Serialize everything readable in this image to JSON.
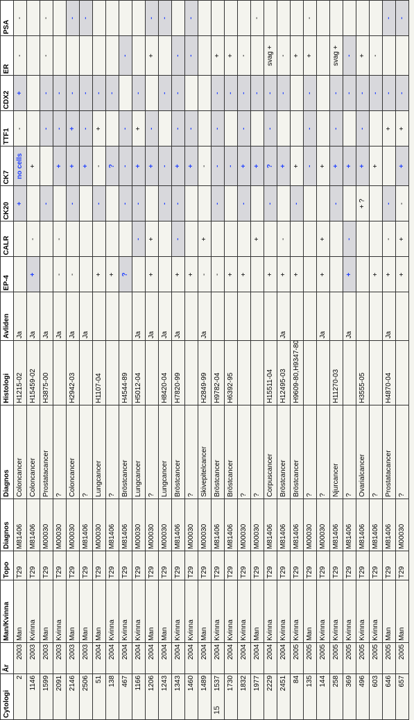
{
  "headers": [
    "Cytologi",
    "År",
    "Man/Kvinna",
    "Topo",
    "Diagnos",
    "Diagnos",
    "Histologi",
    "Avliden",
    "EP-4",
    "CALR",
    "CK20",
    "CK7",
    "TTF1",
    "CDX2",
    "ER",
    "PSA"
  ],
  "page_number": "15",
  "rows": [
    {
      "cyt": "2",
      "ar": "2003",
      "mk": "Man",
      "topo": "T29",
      "d1": "M81406",
      "d2": "Coloncancer",
      "hist": "H1215-02",
      "av": "Ja",
      "m": [
        "",
        "",
        "+",
        "no cells",
        "-",
        "+",
        "-",
        "-"
      ],
      "shade": [
        0,
        0,
        1,
        1,
        0,
        1,
        0,
        0
      ]
    },
    {
      "cyt": "1146",
      "ar": "2003",
      "mk": "Kvinna",
      "topo": "T29",
      "d1": "M81406",
      "d2": "Coloncancer",
      "hist": "H15459-02",
      "av": "Ja",
      "m": [
        "+",
        "-",
        "",
        "+",
        "",
        "",
        "",
        ""
      ],
      "shade": [
        1,
        0,
        0,
        0,
        0,
        0,
        0,
        0
      ]
    },
    {
      "cyt": "1599",
      "ar": "2003",
      "mk": "Man",
      "topo": "T29",
      "d1": "M00030",
      "d2": "Prostatacancer",
      "hist": "H3875-00",
      "av": "Ja",
      "m": [
        "",
        "",
        "-",
        "",
        "-",
        "-",
        "-",
        "-"
      ],
      "shade": [
        0,
        0,
        1,
        0,
        1,
        1,
        0,
        0
      ]
    },
    {
      "cyt": "2091",
      "ar": "2003",
      "mk": "Kvinna",
      "topo": "T29",
      "d1": "M00030",
      "d2": "?",
      "hist": "",
      "av": "Ja",
      "m": [
        "-",
        "-",
        "",
        "+",
        "-",
        "-",
        "",
        ""
      ],
      "shade": [
        0,
        0,
        0,
        1,
        1,
        1,
        0,
        0
      ]
    },
    {
      "cyt": "2146",
      "ar": "2003",
      "mk": "Man",
      "topo": "T29",
      "d1": "M00030",
      "d2": "Coloncancer",
      "hist": "H2942-03",
      "av": "Ja",
      "m": [
        "-",
        "",
        "-",
        "+",
        "+",
        "-",
        "",
        "-"
      ],
      "shade": [
        0,
        0,
        1,
        1,
        1,
        1,
        0,
        1
      ]
    },
    {
      "cyt": "2506",
      "ar": "2003",
      "mk": "Man",
      "topo": "T29",
      "d1": "M81406",
      "d2": "?",
      "hist": "",
      "av": "Ja",
      "m": [
        "",
        "",
        "",
        "+",
        "-",
        "-",
        "",
        "-"
      ],
      "shade": [
        0,
        0,
        0,
        1,
        1,
        1,
        0,
        1
      ]
    },
    {
      "cyt": "51",
      "ar": "2004",
      "mk": "Man",
      "topo": "T29",
      "d1": "M00030",
      "d2": "Lungcancer",
      "hist": "H1107-04",
      "av": "",
      "m": [
        "+",
        "",
        "-",
        "-",
        "+",
        "-",
        "",
        ""
      ],
      "shade": [
        0,
        0,
        1,
        0,
        0,
        1,
        0,
        0
      ]
    },
    {
      "cyt": "138",
      "ar": "2004",
      "mk": "Kvinna",
      "topo": "T29",
      "d1": "M81406",
      "d2": "?",
      "hist": "",
      "av": "",
      "m": [
        "+",
        "",
        "",
        "?",
        "",
        "-",
        "",
        ""
      ],
      "shade": [
        0,
        0,
        0,
        1,
        0,
        1,
        0,
        0
      ]
    },
    {
      "cyt": "467",
      "ar": "2004",
      "mk": "Kvinna",
      "topo": "T29",
      "d1": "M81406",
      "d2": "Bröstcancer",
      "hist": "H4544-89",
      "av": "",
      "m": [
        "?",
        "",
        "-",
        "-",
        "-",
        "",
        "-",
        ""
      ],
      "shade": [
        1,
        0,
        1,
        1,
        1,
        0,
        1,
        0
      ]
    },
    {
      "cyt": "1166",
      "ar": "2004",
      "mk": "Kvinna",
      "topo": "T29",
      "d1": "M00030",
      "d2": "Lungcancer",
      "hist": "H5012-04",
      "av": "Ja",
      "m": [
        "",
        "-",
        "-",
        "+",
        "+",
        "-",
        "",
        ""
      ],
      "shade": [
        0,
        1,
        1,
        1,
        0,
        1,
        0,
        0
      ]
    },
    {
      "cyt": "1206",
      "ar": "2004",
      "mk": "Man",
      "topo": "T29",
      "d1": "M00030",
      "d2": "?",
      "hist": "",
      "av": "Ja",
      "m": [
        "+",
        "+",
        "",
        "+",
        "-",
        "",
        "+",
        "-"
      ],
      "shade": [
        0,
        0,
        0,
        1,
        1,
        0,
        0,
        1
      ]
    },
    {
      "cyt": "1243",
      "ar": "2004",
      "mk": "Man",
      "topo": "T29",
      "d1": "M00030",
      "d2": "Lungcancer",
      "hist": "H8420-04",
      "av": "Ja",
      "m": [
        "",
        "",
        "-",
        "-",
        "",
        "-",
        "",
        "-"
      ],
      "shade": [
        0,
        0,
        1,
        1,
        0,
        1,
        0,
        1
      ]
    },
    {
      "cyt": "1343",
      "ar": "2004",
      "mk": "Kvinna",
      "topo": "T29",
      "d1": "M81406",
      "d2": "Bröstcancer",
      "hist": "H7820-99",
      "av": "Ja",
      "m": [
        "+",
        "-",
        "-",
        "+",
        "-",
        "-",
        "-",
        ""
      ],
      "shade": [
        0,
        1,
        1,
        1,
        1,
        1,
        1,
        0
      ]
    },
    {
      "cyt": "1460",
      "ar": "2004",
      "mk": "Kvinna",
      "topo": "T29",
      "d1": "M00030",
      "d2": "?",
      "hist": "",
      "av": "",
      "m": [
        "+",
        "",
        "",
        "+",
        "-",
        "",
        "-",
        "-"
      ],
      "shade": [
        0,
        0,
        0,
        1,
        1,
        0,
        1,
        1
      ]
    },
    {
      "cyt": "1489",
      "ar": "2004",
      "mk": "Man",
      "topo": "T29",
      "d1": "M00030",
      "d2": "Skivepitelcancer",
      "hist": "H2849-99",
      "av": "Ja",
      "m": [
        "-",
        "+",
        "",
        "-",
        "",
        "",
        "",
        ""
      ],
      "shade": [
        0,
        0,
        0,
        0,
        0,
        0,
        0,
        0
      ]
    },
    {
      "cyt": "1537",
      "ar": "2004",
      "mk": "Kvinna",
      "topo": "T29",
      "d1": "M81406",
      "d2": "Bröstcancer",
      "hist": "H9782-04",
      "av": "",
      "m": [
        "-",
        "",
        "-",
        "-",
        "-",
        "-",
        "+",
        ""
      ],
      "shade": [
        0,
        0,
        1,
        1,
        1,
        1,
        0,
        0
      ]
    },
    {
      "cyt": "1730",
      "ar": "2004",
      "mk": "Kvinna",
      "topo": "T29",
      "d1": "M81406",
      "d2": "Bröstcancer",
      "hist": "H6392-95",
      "av": "",
      "m": [
        "+",
        "",
        "",
        "-",
        "",
        "-",
        "+",
        ""
      ],
      "shade": [
        0,
        0,
        0,
        1,
        0,
        1,
        0,
        0
      ]
    },
    {
      "cyt": "1832",
      "ar": "2004",
      "mk": "Kvinna",
      "topo": "T29",
      "d1": "M00030",
      "d2": "?",
      "hist": "",
      "av": "",
      "m": [
        "+",
        "",
        "-",
        "+",
        "-",
        "-",
        "-",
        ""
      ],
      "shade": [
        0,
        0,
        1,
        1,
        1,
        1,
        0,
        0
      ]
    },
    {
      "cyt": "1977",
      "ar": "2004",
      "mk": "Man",
      "topo": "T29",
      "d1": "M00030",
      "d2": "?",
      "hist": "",
      "av": "",
      "m": [
        "",
        "+",
        "",
        "+",
        "",
        "-",
        "",
        "-"
      ],
      "shade": [
        0,
        0,
        0,
        1,
        0,
        1,
        0,
        0
      ]
    },
    {
      "cyt": "2229",
      "ar": "2004",
      "mk": "Kvinna",
      "topo": "T29",
      "d1": "M81406",
      "d2": "Corpuscancer",
      "hist": "H15511-04",
      "av": "",
      "m": [
        "+",
        "",
        "-",
        "?",
        "-",
        "-",
        "svag +",
        ""
      ],
      "shade": [
        0,
        0,
        1,
        1,
        1,
        1,
        0,
        0
      ]
    },
    {
      "cyt": "2451",
      "ar": "2004",
      "mk": "Kvinna",
      "topo": "T29",
      "d1": "M81406",
      "d2": "Bröstcancer",
      "hist": "H12495-03",
      "av": "Ja",
      "m": [
        "+",
        "-",
        "",
        "+",
        "",
        "-",
        "-",
        ""
      ],
      "shade": [
        0,
        0,
        0,
        1,
        0,
        1,
        0,
        0
      ]
    },
    {
      "cyt": "84",
      "ar": "2005",
      "mk": "Kvinna",
      "topo": "T29",
      "d1": "M81406",
      "d2": "Bröstcancer",
      "hist": "H9609-80,H9347-80",
      "av": "",
      "m": [
        "+",
        "",
        "-",
        "+",
        "",
        "",
        "+",
        ""
      ],
      "shade": [
        0,
        0,
        1,
        0,
        0,
        0,
        0,
        0
      ]
    },
    {
      "cyt": "135",
      "ar": "2005",
      "mk": "Man",
      "topo": "T29",
      "d1": "M00030",
      "d2": "?",
      "hist": "",
      "av": "",
      "m": [
        "",
        "",
        "",
        "-",
        "-",
        "-",
        "+",
        "-"
      ],
      "shade": [
        0,
        0,
        0,
        1,
        1,
        1,
        0,
        0
      ]
    },
    {
      "cyt": "144",
      "ar": "2005",
      "mk": "Kvinna",
      "topo": "T29",
      "d1": "M00030",
      "d2": "?",
      "hist": "",
      "av": "Ja",
      "m": [
        "+",
        "+",
        "",
        "+",
        "",
        "",
        "",
        ""
      ],
      "shade": [
        0,
        0,
        0,
        0,
        0,
        0,
        0,
        0
      ]
    },
    {
      "cyt": "258",
      "ar": "2005",
      "mk": "Kvinna",
      "topo": "T29",
      "d1": "M81406",
      "d2": "Njurcancer",
      "hist": "H11270-03",
      "av": "",
      "m": [
        "",
        "",
        "-",
        "+",
        "-",
        "-",
        "svag +",
        ""
      ],
      "shade": [
        0,
        0,
        1,
        1,
        1,
        1,
        0,
        0
      ]
    },
    {
      "cyt": "369",
      "ar": "2005",
      "mk": "Kvinna",
      "topo": "T29",
      "d1": "M81406",
      "d2": "?",
      "hist": "",
      "av": "Ja",
      "m": [
        "+",
        "-",
        "",
        "+",
        "",
        "-",
        "-",
        ""
      ],
      "shade": [
        1,
        1,
        0,
        1,
        0,
        1,
        1,
        0
      ]
    },
    {
      "cyt": "496",
      "ar": "2005",
      "mk": "Kvinna",
      "topo": "T29",
      "d1": "M81406",
      "d2": "Ovarialcancer",
      "hist": "H3555-05",
      "av": "",
      "m": [
        "",
        "",
        "+ ?",
        "+",
        "-",
        "-",
        "+",
        ""
      ],
      "shade": [
        0,
        0,
        0,
        1,
        1,
        1,
        0,
        0
      ]
    },
    {
      "cyt": "603",
      "ar": "2005",
      "mk": "Kvinna",
      "topo": "T29",
      "d1": "M81406",
      "d2": "?",
      "hist": "",
      "av": "",
      "m": [
        "+",
        "",
        "",
        "+",
        "",
        "-",
        "-",
        ""
      ],
      "shade": [
        0,
        0,
        0,
        0,
        0,
        1,
        0,
        0
      ]
    },
    {
      "cyt": "646",
      "ar": "2005",
      "mk": "Man",
      "topo": "T29",
      "d1": "M81406",
      "d2": "Prostatacancer",
      "hist": "H4870-04",
      "av": "Ja",
      "m": [
        "+",
        "-",
        "-",
        "",
        "+",
        "-",
        "",
        "-"
      ],
      "shade": [
        0,
        0,
        1,
        0,
        0,
        1,
        0,
        1
      ]
    },
    {
      "cyt": "657",
      "ar": "2005",
      "mk": "Man",
      "topo": "T29",
      "d1": "M00030",
      "d2": "?",
      "hist": "",
      "av": "",
      "m": [
        "+",
        "+",
        "-",
        "+",
        "+",
        "-",
        "",
        "-"
      ],
      "shade": [
        0,
        0,
        0,
        1,
        0,
        1,
        0,
        1
      ]
    }
  ]
}
